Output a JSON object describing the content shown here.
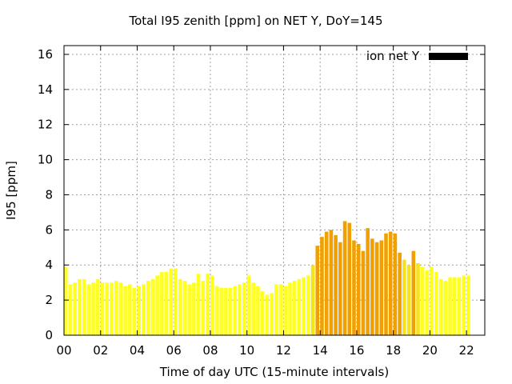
{
  "chart_data": {
    "type": "bar",
    "title": "Total I95 zenith [ppm] on NET Y, DoY=145",
    "xlabel": "Time of day UTC (15-minute intervals)",
    "ylabel": "I95 [ppm]",
    "xlim": [
      0,
      23
    ],
    "ylim": [
      0,
      16.5
    ],
    "xticks": [
      "00",
      "02",
      "04",
      "06",
      "08",
      "10",
      "12",
      "14",
      "16",
      "18",
      "20",
      "22"
    ],
    "yticks": [
      "0",
      "2",
      "4",
      "6",
      "8",
      "10",
      "12",
      "14",
      "16"
    ],
    "grid": true,
    "legend": {
      "placement": "top-right",
      "entries": [
        {
          "name": "ion net Y",
          "color": "#000000"
        }
      ]
    },
    "colors": {
      "low": "#ffff22",
      "mid": "#f5e31b",
      "high": "#f0a000"
    },
    "bar_width_hours": 0.2,
    "values": [
      3.9,
      2.9,
      3.0,
      3.2,
      3.2,
      2.9,
      3.0,
      3.2,
      3.0,
      3.0,
      3.0,
      3.1,
      3.0,
      2.8,
      2.9,
      2.7,
      2.8,
      2.9,
      3.1,
      3.2,
      3.4,
      3.6,
      3.6,
      3.8,
      3.8,
      3.2,
      3.1,
      2.9,
      3.0,
      3.5,
      3.1,
      3.5,
      3.4,
      2.8,
      2.7,
      2.7,
      2.7,
      2.8,
      2.9,
      3.0,
      3.4,
      3.0,
      2.8,
      2.5,
      2.3,
      2.4,
      2.9,
      2.9,
      2.8,
      3.0,
      3.1,
      3.2,
      3.3,
      3.4,
      4.0,
      5.1,
      5.6,
      5.9,
      6.0,
      5.7,
      5.3,
      6.5,
      6.4,
      5.4,
      5.2,
      4.8,
      6.1,
      5.5,
      5.3,
      5.4,
      5.8,
      5.9,
      5.8,
      4.7,
      4.3,
      4.0,
      4.8,
      4.1,
      3.9,
      3.7,
      3.9,
      3.6,
      3.2,
      3.1,
      3.3,
      3.3,
      3.3,
      3.4,
      3.4
    ]
  }
}
